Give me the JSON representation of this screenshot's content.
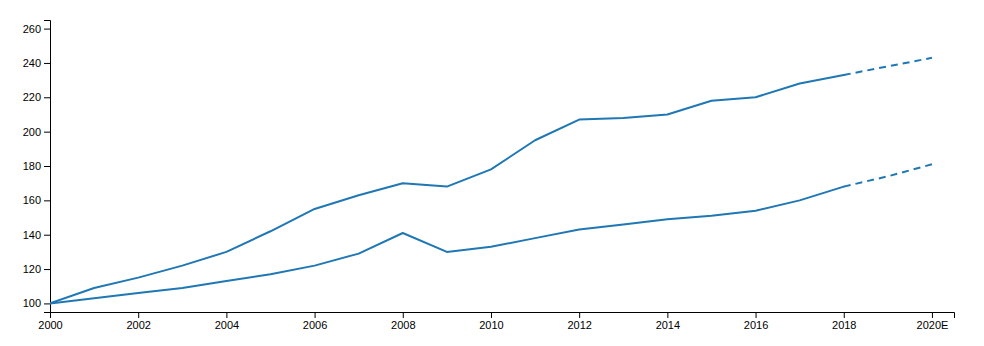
{
  "chart_data": {
    "type": "line",
    "x": [
      2000,
      2001,
      2002,
      2003,
      2004,
      2005,
      2006,
      2007,
      2008,
      2009,
      2010,
      2011,
      2012,
      2013,
      2014,
      2015,
      2016,
      2017,
      2018,
      2019,
      2020
    ],
    "series": [
      {
        "line_style": "solid",
        "values": [
          100,
          109,
          115,
          122,
          130,
          142,
          155,
          163,
          170,
          168,
          178,
          195,
          207,
          208,
          210,
          218,
          220,
          228,
          233,
          null,
          null
        ]
      },
      {
        "line_style": "dashed",
        "values": [
          null,
          null,
          null,
          null,
          null,
          null,
          null,
          null,
          null,
          null,
          null,
          null,
          null,
          null,
          null,
          null,
          null,
          null,
          233,
          238,
          243
        ]
      },
      {
        "line_style": "solid",
        "values": [
          100,
          103,
          106,
          109,
          113,
          117,
          122,
          129,
          141,
          130,
          133,
          138,
          143,
          146,
          149,
          151,
          154,
          160,
          168,
          null,
          null
        ]
      },
      {
        "line_style": "dashed",
        "values": [
          null,
          null,
          null,
          null,
          null,
          null,
          null,
          null,
          null,
          null,
          null,
          null,
          null,
          null,
          null,
          null,
          null,
          null,
          168,
          174,
          181
        ]
      }
    ],
    "xlim": [
      2000,
      2020.5
    ],
    "xticks": [
      2000,
      2002,
      2004,
      2006,
      2008,
      2010,
      2012,
      2014,
      2016,
      2018,
      {
        "value": 2020,
        "label": "2020E"
      }
    ],
    "ylim": [
      95,
      265
    ],
    "yticks": [
      100,
      120,
      140,
      160,
      180,
      200,
      220,
      240,
      260
    ],
    "grid": false
  }
}
